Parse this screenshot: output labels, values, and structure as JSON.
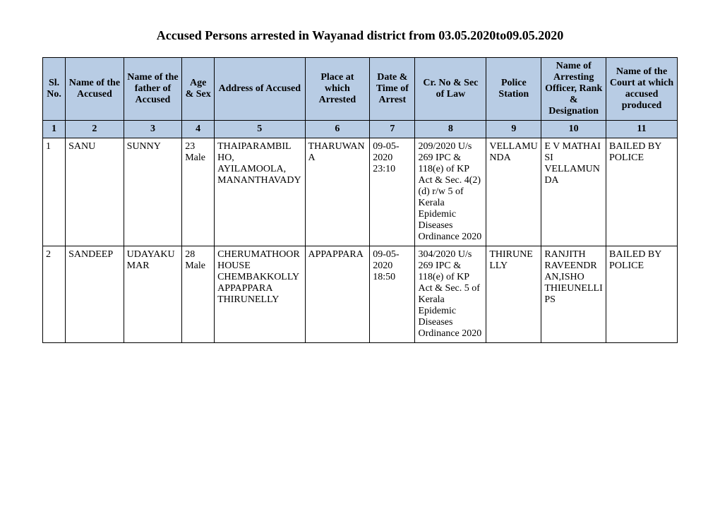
{
  "title": "Accused Persons arrested in   Wayanad   district from  03.05.2020to09.05.2020",
  "headers": {
    "c1": "Sl. No.",
    "c2": "Name of the Accused",
    "c3": "Name of the father of Accused",
    "c4": "Age & Sex",
    "c5": "Address of Accused",
    "c6": "Place at which Arrested",
    "c7": "Date & Time of Arrest",
    "c8": "Cr. No & Sec of Law",
    "c9": "Police Station",
    "c10": "Name of Arresting Officer, Rank & Designation",
    "c11": "Name of the Court at which accused produced"
  },
  "numrow": {
    "c1": "1",
    "c2": "2",
    "c3": "3",
    "c4": "4",
    "c5": "5",
    "c6": "6",
    "c7": "7",
    "c8": "8",
    "c9": "9",
    "c10": "10",
    "c11": "11"
  },
  "rows": [
    {
      "c1": "1",
      "c2": "SANU",
      "c3": "SUNNY",
      "c4": "23 Male",
      "c5": "THAIPARAMBIL HO, AYILAMOOLA, MANANTHAVADY",
      "c6": "THARUWANA",
      "c7": "09-05-2020 23:10",
      "c8": "209/2020 U/s 269 IPC & 118(e) of KP Act & Sec. 4(2)(d) r/w 5 of Kerala Epidemic Diseases Ordinance 2020",
      "c9": "VELLAMUNDA",
      "c10": "E V MATHAI SI VELLAMUNDA",
      "c11": "BAILED BY POLICE"
    },
    {
      "c1": "2",
      "c2": "SANDEEP",
      "c3": "UDAYAKUMAR",
      "c4": "28 Male",
      "c5": "CHERUMATHOOR HOUSE CHEMBAKKOLLY APPAPPARA THIRUNELLY",
      "c6": "APPAPPARA",
      "c7": "09-05-2020 18:50",
      "c8": "304/2020 U/s 269 IPC & 118(e) of KP Act & Sec. 5 of Kerala Epidemic Diseases Ordinance 2020",
      "c9": "THIRUNELLY",
      "c10": "RANJITH RAVEENDRAN,ISHO THIEUNELLI PS",
      "c11": "BAILED BY POLICE"
    }
  ]
}
